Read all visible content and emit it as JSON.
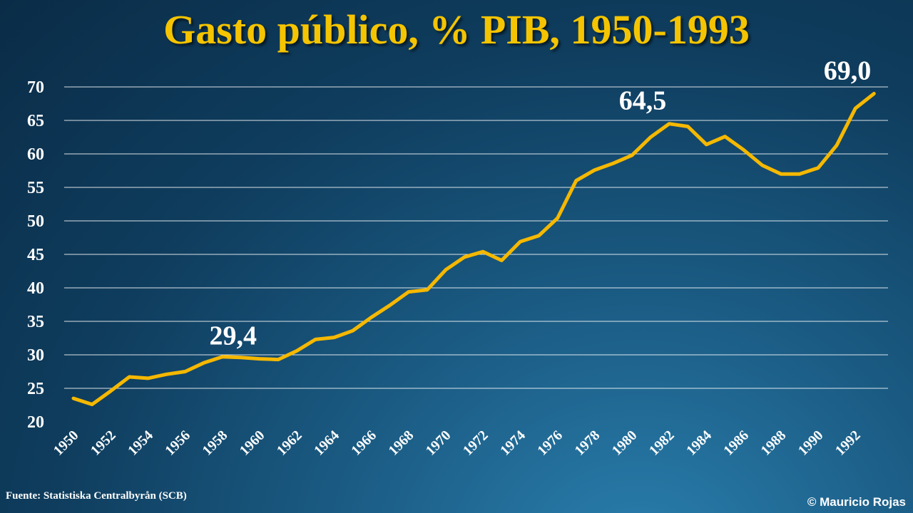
{
  "chart_data": {
    "type": "line",
    "title": "Gasto público, % PIB, 1950-1993",
    "xlabel": "",
    "ylabel": "",
    "x": [
      1950,
      1951,
      1952,
      1953,
      1954,
      1955,
      1956,
      1957,
      1958,
      1959,
      1960,
      1961,
      1962,
      1963,
      1964,
      1965,
      1966,
      1967,
      1968,
      1969,
      1970,
      1971,
      1972,
      1973,
      1974,
      1975,
      1976,
      1977,
      1978,
      1979,
      1980,
      1981,
      1982,
      1983,
      1984,
      1985,
      1986,
      1987,
      1988,
      1989,
      1990,
      1991,
      1992,
      1993
    ],
    "x_tick_labels": [
      "1950",
      "1952",
      "1954",
      "1956",
      "1958",
      "1960",
      "1962",
      "1964",
      "1966",
      "1968",
      "1970",
      "1972",
      "1974",
      "1976",
      "1978",
      "1980",
      "1982",
      "1984",
      "1986",
      "1988",
      "1990",
      "1992"
    ],
    "y_ticks": [
      20,
      25,
      30,
      35,
      40,
      45,
      50,
      55,
      60,
      65,
      70
    ],
    "ylim": [
      20,
      70
    ],
    "grid": true,
    "color": "#f5b800",
    "series": [
      {
        "values": [
          23.5,
          22.6,
          24.6,
          26.7,
          26.5,
          27.1,
          27.5,
          28.8,
          29.7,
          29.6,
          29.4,
          29.3,
          30.6,
          32.3,
          32.6,
          33.6,
          35.6,
          37.4,
          39.4,
          39.7,
          42.7,
          44.6,
          45.4,
          44.1,
          46.9,
          47.8,
          50.4,
          56.0,
          57.6,
          58.6,
          59.8,
          62.5,
          64.5,
          64.1,
          61.4,
          62.6,
          60.6,
          58.3,
          57.0,
          57.0,
          57.9,
          61.3,
          66.8,
          69.0
        ]
      }
    ],
    "annotations": [
      {
        "text": "29,4",
        "x": 1960,
        "y": 29.4
      },
      {
        "text": "64,5",
        "x": 1982,
        "y": 64.5
      },
      {
        "text": "69,0",
        "x": 1993,
        "y": 69.0
      }
    ]
  },
  "footer": {
    "source": "Fuente: Statistiska Centralbyrån (SCB)",
    "copyright": "© Mauricio Rojas"
  }
}
